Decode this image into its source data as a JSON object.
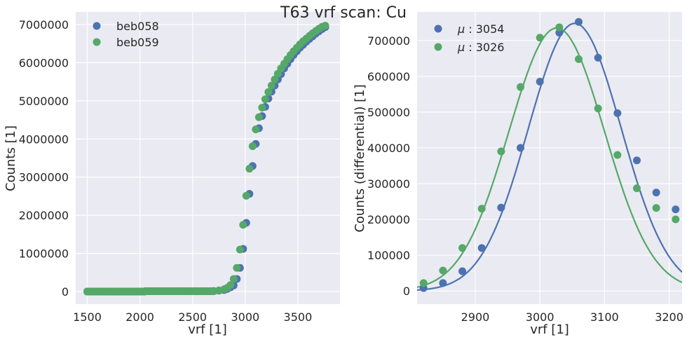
{
  "figure": {
    "title": "T63 vrf scan: Cu",
    "background": "#ffffff",
    "axes_background": "#eaeaf2",
    "grid_color": "#ffffff",
    "colors": {
      "blue": "#4c72b0",
      "green": "#55a868"
    }
  },
  "chart_data": [
    {
      "type": "scatter",
      "title": "",
      "xlabel": "vrf [1]",
      "ylabel": "Counts [1]",
      "xlim": [
        1390,
        3900
      ],
      "ylim": [
        -330000,
        7330000
      ],
      "xticks": [
        1500,
        2000,
        2500,
        3000,
        3500
      ],
      "xtick_labels": [
        "1500",
        "2000",
        "2500",
        "3000",
        "3500"
      ],
      "yticks": [
        0,
        1000000,
        2000000,
        3000000,
        4000000,
        5000000,
        6000000,
        7000000
      ],
      "ytick_labels": [
        "0",
        "1000000",
        "2000000",
        "3000000",
        "4000000",
        "5000000",
        "6000000",
        "7000000"
      ],
      "grid": true,
      "legend_position": "upper left",
      "series": [
        {
          "name": "beb058",
          "color": "#4c72b0",
          "x": [
            1500,
            1600,
            1700,
            1800,
            1900,
            2000,
            2050,
            2100,
            2200,
            2300,
            2400,
            2500,
            2600,
            2700,
            2750,
            2800,
            2830,
            2860,
            2890,
            2920,
            2950,
            2980,
            3010,
            3040,
            3070,
            3100,
            3130,
            3160,
            3190,
            3220,
            3250,
            3280,
            3310,
            3340,
            3370,
            3400,
            3430,
            3460,
            3490,
            3520,
            3550,
            3580,
            3610,
            3640,
            3670,
            3700,
            3730,
            3760
          ],
          "y": [
            0,
            0,
            0,
            0,
            0,
            0,
            5000,
            10000,
            10000,
            10000,
            10000,
            10000,
            10000,
            15000,
            25000,
            40000,
            70000,
            110000,
            160000,
            330000,
            620000,
            1120000,
            1800000,
            2560000,
            3290000,
            3870000,
            4280000,
            4600000,
            4840000,
            5060000,
            5240000,
            5400000,
            5560000,
            5700000,
            5850000,
            5970000,
            6090000,
            6200000,
            6300000,
            6390000,
            6470000,
            6550000,
            6620000,
            6690000,
            6760000,
            6820000,
            6880000,
            6930000
          ]
        },
        {
          "name": "beb059",
          "color": "#55a868",
          "x": [
            1500,
            1600,
            1700,
            1800,
            1900,
            2000,
            2050,
            2100,
            2200,
            2300,
            2400,
            2500,
            2600,
            2700,
            2750,
            2800,
            2830,
            2860,
            2890,
            2920,
            2950,
            2980,
            3010,
            3040,
            3070,
            3100,
            3130,
            3160,
            3190,
            3220,
            3250,
            3280,
            3310,
            3340,
            3370,
            3400,
            3430,
            3460,
            3490,
            3520,
            3550,
            3580,
            3610,
            3640,
            3670,
            3700,
            3730,
            3760
          ],
          "y": [
            0,
            0,
            0,
            0,
            0,
            0,
            5000,
            10000,
            10000,
            10000,
            10000,
            10000,
            10000,
            15000,
            30000,
            60000,
            100000,
            170000,
            330000,
            620000,
            1100000,
            1750000,
            2510000,
            3220000,
            3810000,
            4250000,
            4570000,
            4820000,
            5040000,
            5230000,
            5400000,
            5560000,
            5710000,
            5850000,
            5970000,
            6090000,
            6200000,
            6300000,
            6390000,
            6480000,
            6560000,
            6630000,
            6700000,
            6770000,
            6830000,
            6890000,
            6940000,
            6970000
          ]
        }
      ]
    },
    {
      "type": "scatter",
      "title": "",
      "xlabel": "vrf [1]",
      "ylabel": "Counts (differential) [1]",
      "xlim": [
        2810,
        3220
      ],
      "ylim": [
        -37000,
        780000
      ],
      "xticks": [
        2900,
        3000,
        3100,
        3200
      ],
      "xtick_labels": [
        "2900",
        "3000",
        "3100",
        "3200"
      ],
      "yticks": [
        0,
        100000,
        200000,
        300000,
        400000,
        500000,
        600000,
        700000
      ],
      "ytick_labels": [
        "0",
        "100000",
        "200000",
        "300000",
        "400000",
        "500000",
        "600000",
        "700000"
      ],
      "grid": true,
      "legend_position": "upper left",
      "series": [
        {
          "name": "μ: 3054",
          "legend_mu": "3054",
          "color": "#4c72b0",
          "points_x": [
            2820,
            2850,
            2880,
            2910,
            2940,
            2970,
            3000,
            3030,
            3060,
            3090,
            3120,
            3150,
            3180,
            3210
          ],
          "points_y": [
            8000,
            22000,
            55000,
            120000,
            233000,
            400000,
            585000,
            722000,
            752000,
            652000,
            497000,
            365000,
            275000,
            228000
          ],
          "fit": {
            "type": "gaussian",
            "mu": 3054,
            "amplitude": 748000,
            "sigma": 72
          }
        },
        {
          "name": "μ: 3026",
          "legend_mu": "3026",
          "color": "#55a868",
          "points_x": [
            2820,
            2850,
            2880,
            2910,
            2940,
            2970,
            3000,
            3030,
            3060,
            3090,
            3120,
            3150,
            3180,
            3210
          ],
          "points_y": [
            22000,
            57000,
            120000,
            230000,
            390000,
            570000,
            708000,
            737000,
            648000,
            510000,
            380000,
            287000,
            232000,
            200000
          ],
          "fit": {
            "type": "gaussian",
            "mu": 3026,
            "amplitude": 735000,
            "sigma": 74
          }
        }
      ]
    }
  ]
}
